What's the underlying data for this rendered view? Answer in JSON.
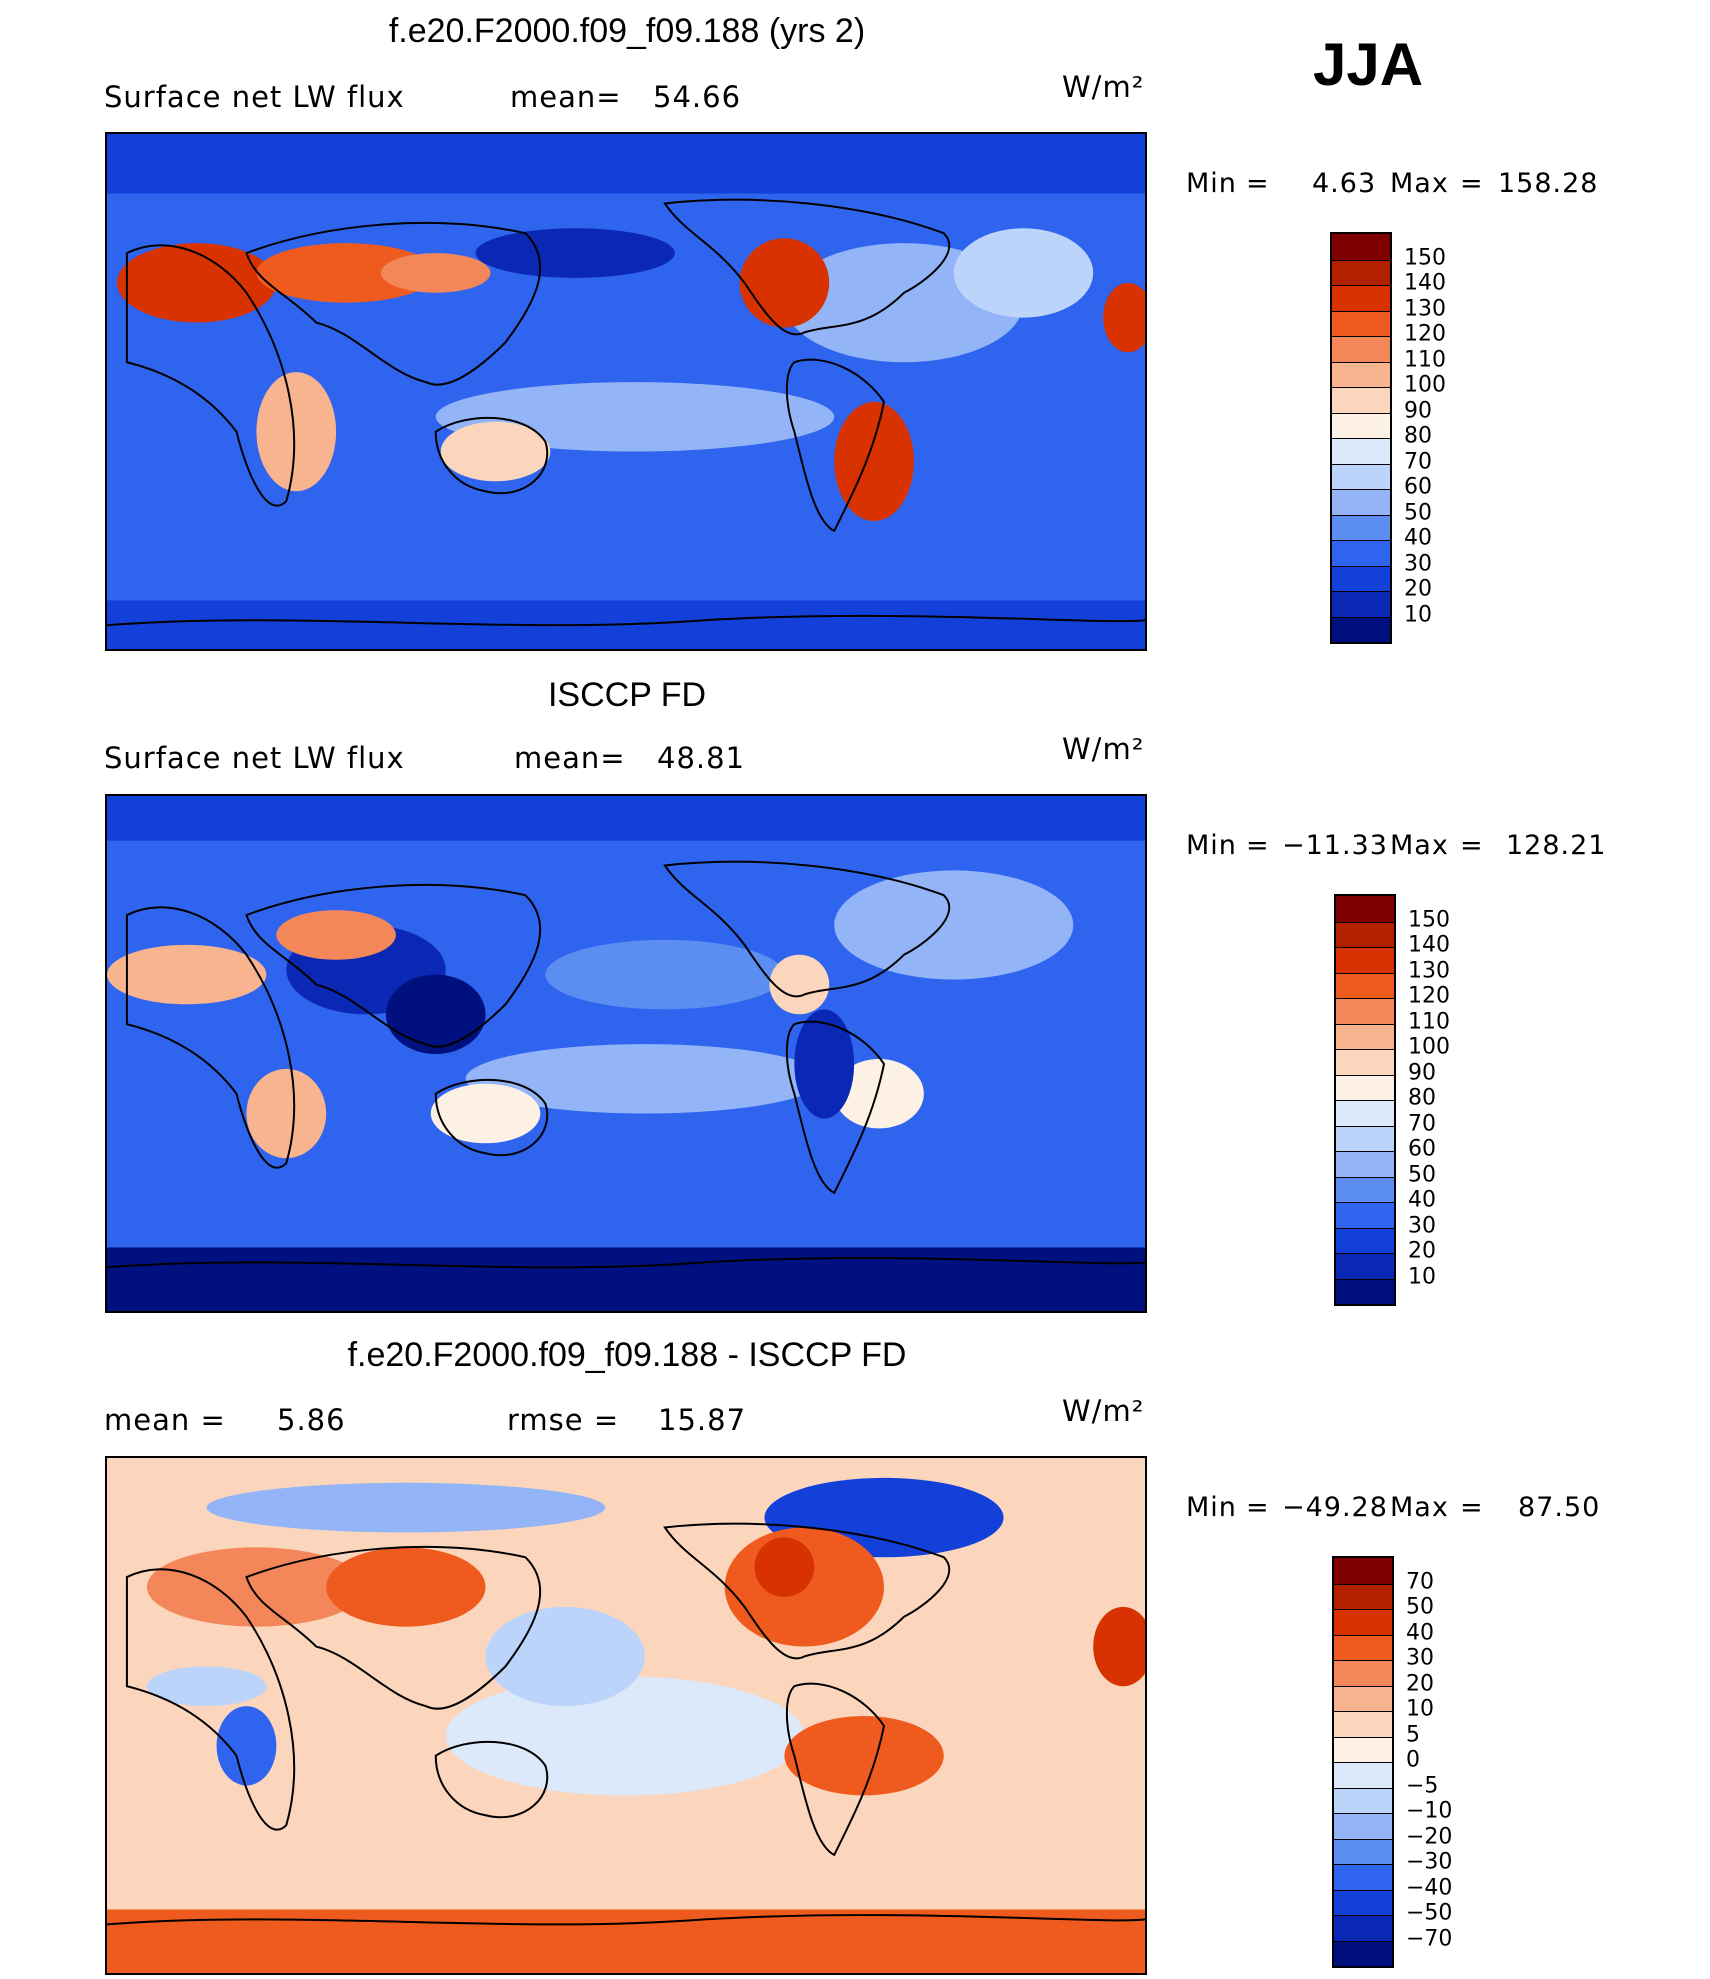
{
  "season": "JJA",
  "panels": [
    {
      "title": "f.e20.F2000.f09_f09.188 (yrs 2)",
      "left_label": "Surface net LW flux",
      "stat_label": "mean=",
      "stat_value": "54.66",
      "units": "W/m²",
      "min_label": "Min",
      "min_value": "4.63",
      "max_label": "Max",
      "max_value": "158.28",
      "colorbar": {
        "labels": [
          "150",
          "140",
          "130",
          "120",
          "110",
          "100",
          "90",
          "80",
          "70",
          "60",
          "50",
          "40",
          "30",
          "20",
          "10"
        ],
        "colors": [
          "#7f0000",
          "#b22000",
          "#d83200",
          "#ef5a1f",
          "#f4875a",
          "#f7b48e",
          "#fbd6bd",
          "#fdf0e4",
          "#dbe9fb",
          "#bcd3fa",
          "#93b4f6",
          "#5c8ef2",
          "#2f64ee",
          "#1340d9",
          "#0a28b4",
          "#00107f"
        ]
      },
      "map": {
        "type": "contour",
        "domain": "global",
        "variable": "Surface net LW flux",
        "units": "W/m²",
        "features": [
          "coastlines",
          "filled contours"
        ]
      }
    },
    {
      "title": "ISCCP FD",
      "left_label": "Surface net LW flux",
      "stat_label": "mean=",
      "stat_value": "48.81",
      "units": "W/m²",
      "min_label": "Min",
      "min_value": "−11.33",
      "max_label": "Max",
      "max_value": "128.21",
      "colorbar": {
        "labels": [
          "150",
          "140",
          "130",
          "120",
          "110",
          "100",
          "90",
          "80",
          "70",
          "60",
          "50",
          "40",
          "30",
          "20",
          "10"
        ],
        "colors": [
          "#7f0000",
          "#b22000",
          "#d83200",
          "#ef5a1f",
          "#f4875a",
          "#f7b48e",
          "#fbd6bd",
          "#fdf0e4",
          "#dbe9fb",
          "#bcd3fa",
          "#93b4f6",
          "#5c8ef2",
          "#2f64ee",
          "#1340d9",
          "#0a28b4",
          "#00107f"
        ]
      },
      "map": {
        "type": "contour",
        "domain": "global",
        "variable": "Surface net LW flux",
        "units": "W/m²",
        "features": [
          "coastlines",
          "filled contours"
        ]
      }
    },
    {
      "title": "f.e20.F2000.f09_f09.188 - ISCCP FD",
      "left_label": "mean =",
      "left_value": "5.86",
      "stat_label": "rmse =",
      "stat_value": "15.87",
      "units": "W/m²",
      "min_label": "Min",
      "min_value": "−49.28",
      "max_label": "Max",
      "max_value": "87.50",
      "colorbar": {
        "labels": [
          "70",
          "50",
          "40",
          "30",
          "20",
          "10",
          "5",
          "0",
          "−5",
          "−10",
          "−20",
          "−30",
          "−40",
          "−50",
          "−70"
        ],
        "colors": [
          "#7f0000",
          "#b22000",
          "#d83200",
          "#ef5a1f",
          "#f4875a",
          "#f7b48e",
          "#fbd6bd",
          "#fdf0e4",
          "#dbe9fb",
          "#bcd3fa",
          "#93b4f6",
          "#5c8ef2",
          "#2f64ee",
          "#1340d9",
          "#0a28b4",
          "#00107f"
        ]
      },
      "map": {
        "type": "contour",
        "domain": "global",
        "variable": "Surface net LW flux difference",
        "units": "W/m²",
        "features": [
          "coastlines",
          "filled contours"
        ]
      }
    }
  ]
}
